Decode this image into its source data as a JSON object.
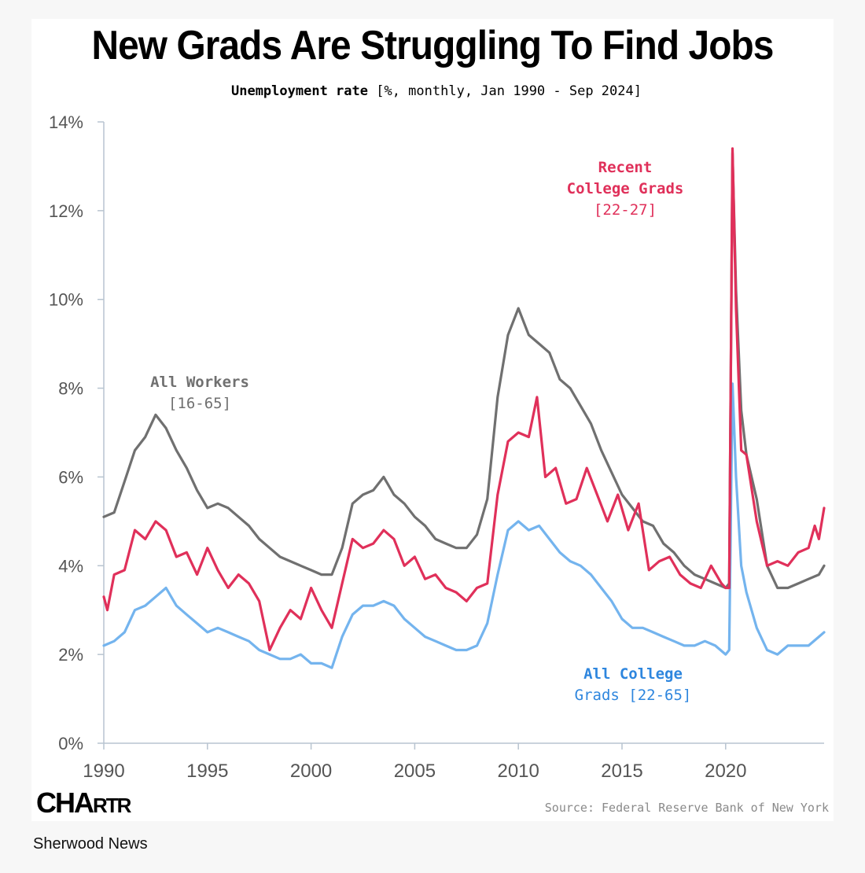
{
  "header": {
    "title": "New Grads Are Struggling To Find Jobs",
    "subtitle_bold": "Unemployment rate",
    "subtitle_rest": "[%, monthly, Jan 1990 - Sep 2024]"
  },
  "footer": {
    "logo_text": "CHARTR",
    "source": "Source: Federal Reserve Bank of New York",
    "publisher": "Sherwood News"
  },
  "colors": {
    "all_workers": "#707070",
    "recent_grads": "#e0305a",
    "college_grads": "#74b4ee",
    "axis": "#b8c4d0"
  },
  "chart_data": {
    "type": "line",
    "title": "New Grads Are Struggling To Find Jobs",
    "subtitle": "Unemployment rate [%, monthly, Jan 1990 - Sep 2024]",
    "xlabel": "",
    "ylabel": "",
    "xlim": [
      1990,
      2024.75
    ],
    "ylim": [
      0,
      14
    ],
    "x_ticks": [
      1990,
      1995,
      2000,
      2005,
      2010,
      2015,
      2020
    ],
    "y_ticks": [
      0,
      2,
      4,
      6,
      8,
      10,
      12,
      14
    ],
    "y_tick_labels": [
      "0%",
      "2%",
      "4%",
      "6%",
      "8%",
      "10%",
      "12%",
      "14%"
    ],
    "grid": false,
    "legend": "none (direct labels)",
    "series": [
      {
        "name": "All Workers [16-65]",
        "label_lines": [
          "All Workers",
          "[16-65]"
        ],
        "x": [
          1990.0,
          1990.5,
          1991.0,
          1991.5,
          1992.0,
          1992.5,
          1993.0,
          1993.5,
          1994.0,
          1994.5,
          1995.0,
          1995.5,
          1996.0,
          1996.5,
          1997.0,
          1997.5,
          1998.0,
          1998.5,
          1999.0,
          1999.5,
          2000.0,
          2000.5,
          2001.0,
          2001.5,
          2002.0,
          2002.5,
          2003.0,
          2003.5,
          2004.0,
          2004.5,
          2005.0,
          2005.5,
          2006.0,
          2006.5,
          2007.0,
          2007.5,
          2008.0,
          2008.5,
          2009.0,
          2009.5,
          2010.0,
          2010.5,
          2011.0,
          2011.5,
          2012.0,
          2012.5,
          2013.0,
          2013.5,
          2014.0,
          2014.5,
          2015.0,
          2015.5,
          2016.0,
          2016.5,
          2017.0,
          2017.5,
          2018.0,
          2018.5,
          2019.0,
          2019.5,
          2020.0,
          2020.17,
          2020.33,
          2020.5,
          2020.75,
          2021.0,
          2021.5,
          2022.0,
          2022.5,
          2023.0,
          2023.5,
          2024.0,
          2024.5,
          2024.75
        ],
        "values": [
          5.1,
          5.2,
          5.9,
          6.6,
          6.9,
          7.4,
          7.1,
          6.6,
          6.2,
          5.7,
          5.3,
          5.4,
          5.3,
          5.1,
          4.9,
          4.6,
          4.4,
          4.2,
          4.1,
          4.0,
          3.9,
          3.8,
          3.8,
          4.4,
          5.4,
          5.6,
          5.7,
          6.0,
          5.6,
          5.4,
          5.1,
          4.9,
          4.6,
          4.5,
          4.4,
          4.4,
          4.7,
          5.5,
          7.8,
          9.2,
          9.8,
          9.2,
          9.0,
          8.8,
          8.2,
          8.0,
          7.6,
          7.2,
          6.6,
          6.1,
          5.6,
          5.3,
          5.0,
          4.9,
          4.5,
          4.3,
          4.0,
          3.8,
          3.7,
          3.6,
          3.5,
          3.6,
          13.3,
          10.2,
          7.5,
          6.5,
          5.5,
          4.0,
          3.5,
          3.5,
          3.6,
          3.7,
          3.8,
          4.0
        ]
      },
      {
        "name": "Recent College Grads [22-27]",
        "label_lines": [
          "Recent",
          "College Grads",
          "[22-27]"
        ],
        "x": [
          1990.0,
          1990.17,
          1990.5,
          1991.0,
          1991.5,
          1992.0,
          1992.5,
          1993.0,
          1993.5,
          1994.0,
          1994.5,
          1995.0,
          1995.5,
          1996.0,
          1996.5,
          1997.0,
          1997.5,
          1998.0,
          1998.5,
          1999.0,
          1999.5,
          2000.0,
          2000.5,
          2001.0,
          2001.5,
          2002.0,
          2002.5,
          2003.0,
          2003.5,
          2004.0,
          2004.5,
          2005.0,
          2005.5,
          2006.0,
          2006.5,
          2007.0,
          2007.5,
          2008.0,
          2008.5,
          2009.0,
          2009.5,
          2010.0,
          2010.5,
          2010.9,
          2011.3,
          2011.8,
          2012.3,
          2012.8,
          2013.3,
          2013.8,
          2014.3,
          2014.8,
          2015.3,
          2015.8,
          2016.3,
          2016.8,
          2017.3,
          2017.8,
          2018.3,
          2018.8,
          2019.3,
          2019.8,
          2020.0,
          2020.17,
          2020.33,
          2020.5,
          2020.75,
          2021.0,
          2021.5,
          2022.0,
          2022.5,
          2023.0,
          2023.5,
          2024.0,
          2024.3,
          2024.5,
          2024.75
        ],
        "values": [
          3.3,
          3.0,
          3.8,
          3.9,
          4.8,
          4.6,
          5.0,
          4.8,
          4.2,
          4.3,
          3.8,
          4.4,
          3.9,
          3.5,
          3.8,
          3.6,
          3.2,
          2.1,
          2.6,
          3.0,
          2.8,
          3.5,
          3.0,
          2.6,
          3.6,
          4.6,
          4.4,
          4.5,
          4.8,
          4.6,
          4.0,
          4.2,
          3.7,
          3.8,
          3.5,
          3.4,
          3.2,
          3.5,
          3.6,
          5.6,
          6.8,
          7.0,
          6.9,
          7.8,
          6.0,
          6.2,
          5.4,
          5.5,
          6.2,
          5.6,
          5.0,
          5.6,
          4.8,
          5.4,
          3.9,
          4.1,
          4.2,
          3.8,
          3.6,
          3.5,
          4.0,
          3.6,
          3.5,
          3.5,
          13.4,
          9.8,
          6.6,
          6.5,
          5.0,
          4.0,
          4.1,
          4.0,
          4.3,
          4.4,
          4.9,
          4.6,
          5.3
        ]
      },
      {
        "name": "All College Grads [22-65]",
        "label_lines": [
          "All College",
          "Grads [22-65]"
        ],
        "x": [
          1990.0,
          1990.5,
          1991.0,
          1991.5,
          1992.0,
          1992.5,
          1993.0,
          1993.5,
          1994.0,
          1994.5,
          1995.0,
          1995.5,
          1996.0,
          1996.5,
          1997.0,
          1997.5,
          1998.0,
          1998.5,
          1999.0,
          1999.5,
          2000.0,
          2000.5,
          2001.0,
          2001.5,
          2002.0,
          2002.5,
          2003.0,
          2003.5,
          2004.0,
          2004.5,
          2005.0,
          2005.5,
          2006.0,
          2006.5,
          2007.0,
          2007.5,
          2008.0,
          2008.5,
          2009.0,
          2009.5,
          2010.0,
          2010.5,
          2011.0,
          2011.5,
          2012.0,
          2012.5,
          2013.0,
          2013.5,
          2014.0,
          2014.5,
          2015.0,
          2015.5,
          2016.0,
          2016.5,
          2017.0,
          2017.5,
          2018.0,
          2018.5,
          2019.0,
          2019.5,
          2020.0,
          2020.17,
          2020.33,
          2020.5,
          2020.75,
          2021.0,
          2021.5,
          2022.0,
          2022.5,
          2023.0,
          2023.5,
          2024.0,
          2024.5,
          2024.75
        ],
        "values": [
          2.2,
          2.3,
          2.5,
          3.0,
          3.1,
          3.3,
          3.5,
          3.1,
          2.9,
          2.7,
          2.5,
          2.6,
          2.5,
          2.4,
          2.3,
          2.1,
          2.0,
          1.9,
          1.9,
          2.0,
          1.8,
          1.8,
          1.7,
          2.4,
          2.9,
          3.1,
          3.1,
          3.2,
          3.1,
          2.8,
          2.6,
          2.4,
          2.3,
          2.2,
          2.1,
          2.1,
          2.2,
          2.7,
          3.8,
          4.8,
          5.0,
          4.8,
          4.9,
          4.6,
          4.3,
          4.1,
          4.0,
          3.8,
          3.5,
          3.2,
          2.8,
          2.6,
          2.6,
          2.5,
          2.4,
          2.3,
          2.2,
          2.2,
          2.3,
          2.2,
          2.0,
          2.1,
          8.1,
          6.0,
          4.0,
          3.4,
          2.6,
          2.1,
          2.0,
          2.2,
          2.2,
          2.2,
          2.4,
          2.5
        ]
      }
    ]
  }
}
